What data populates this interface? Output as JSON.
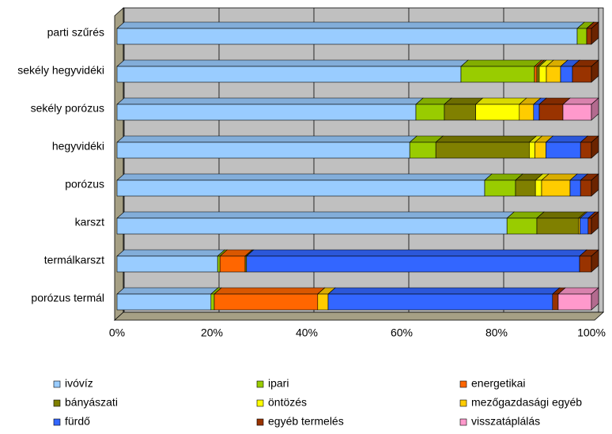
{
  "chart_data": {
    "type": "bar",
    "orientation": "horizontal",
    "stacked": true,
    "categories": [
      "parti szűrés",
      "sekély hegyvidéki",
      "sekély porózus",
      "hegyvidéki",
      "porózus",
      "karszt",
      "termálkarszt",
      "porózus termál"
    ],
    "series": [
      {
        "name": "ivóvíz",
        "color": "#99ccff",
        "values": [
          97,
          72.5,
          63,
          61.7,
          77.5,
          82.2,
          21.2,
          19.8
        ]
      },
      {
        "name": "ipari",
        "color": "#99cc00",
        "values": [
          2,
          15.5,
          6,
          5.5,
          6.5,
          6.3,
          0.5,
          0.7
        ]
      },
      {
        "name": "energetikai",
        "color": "#ff6600",
        "values": [
          0,
          0.5,
          0,
          0,
          0,
          0,
          5.3,
          21.8
        ]
      },
      {
        "name": "bányászati",
        "color": "#808000",
        "values": [
          0,
          0.5,
          6.6,
          19.7,
          4.2,
          8.8,
          0.3,
          0
        ]
      },
      {
        "name": "öntözés",
        "color": "#ffff00",
        "values": [
          0,
          1.5,
          9.2,
          1.2,
          1.3,
          0,
          0,
          0
        ]
      },
      {
        "name": "mezőgazdasági egyéb",
        "color": "#ffcc00",
        "values": [
          0,
          3,
          3,
          2.3,
          6,
          0.3,
          0,
          2.2
        ]
      },
      {
        "name": "fürdő",
        "color": "#3366ff",
        "values": [
          0,
          2.5,
          1.2,
          7.3,
          2.2,
          1.7,
          70.2,
          47.3
        ]
      },
      {
        "name": "egyéb termelés",
        "color": "#993300",
        "values": [
          1,
          4,
          5,
          2.3,
          2.3,
          0.7,
          2.5,
          1.2
        ]
      },
      {
        "name": "visszatáplálás",
        "color": "#ff99cc",
        "values": [
          0,
          0,
          6,
          0,
          0,
          0,
          0,
          7
        ]
      }
    ],
    "xlim": [
      0,
      100
    ],
    "xticks": [
      {
        "value": 0,
        "label": "0%"
      },
      {
        "value": 20,
        "label": "20%"
      },
      {
        "value": 40,
        "label": "40%"
      },
      {
        "value": 60,
        "label": "60%"
      },
      {
        "value": 80,
        "label": "80%"
      },
      {
        "value": 100,
        "label": "100%"
      }
    ],
    "grid": true,
    "legend": "bottom"
  }
}
